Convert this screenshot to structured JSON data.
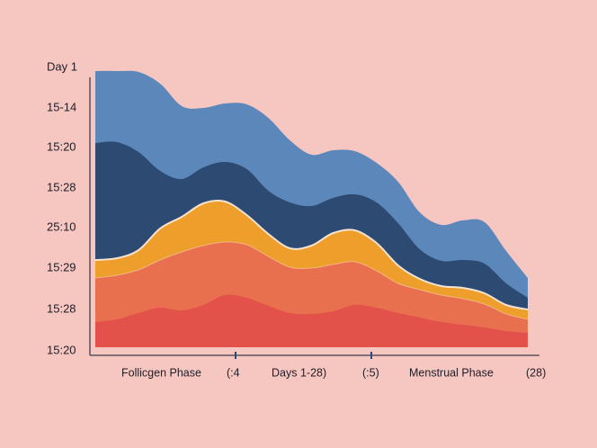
{
  "chart_data": {
    "type": "area",
    "y_tick_labels": [
      "Day 1",
      "15-14",
      "15:20",
      "15:28",
      "25:10",
      "15:29",
      "15:28",
      "15:20"
    ],
    "x_labels": [
      "Follicgen Phase",
      "(:4",
      "Days 1-28)",
      "(:5)",
      "Menstrual Phase",
      "(28)"
    ],
    "x": [
      0,
      1,
      2,
      3,
      4,
      5,
      6,
      7,
      8,
      9,
      10,
      11,
      12,
      13,
      14,
      15,
      16,
      17,
      18,
      19,
      20
    ],
    "series": [
      {
        "color": "#5b87ba",
        "values": [
          307,
          307,
          306,
          293,
          268,
          266,
          271,
          270,
          255,
          230,
          214,
          219,
          218,
          205,
          184,
          150,
          136,
          141,
          139,
          107,
          77
        ]
      },
      {
        "color": "#2d4a73",
        "values": [
          227,
          228,
          217,
          196,
          187,
          200,
          206,
          198,
          174,
          161,
          157,
          166,
          170,
          161,
          138,
          109,
          96,
          97,
          93,
          71,
          55
        ]
      },
      {
        "color": "#ee9e2a",
        "values": [
          97,
          99,
          108,
          132,
          145,
          160,
          162,
          147,
          126,
          110,
          113,
          127,
          130,
          116,
          91,
          76,
          68,
          66,
          60,
          47,
          42
        ]
      },
      {
        "color": "#e9704e",
        "values": [
          77,
          80,
          86,
          97,
          106,
          113,
          117,
          114,
          101,
          89,
          88,
          92,
          95,
          85,
          71,
          64,
          58,
          54,
          48,
          37,
          31
        ]
      },
      {
        "color": "#e2514a",
        "values": [
          28,
          31,
          38,
          44,
          41,
          47,
          58,
          55,
          46,
          38,
          37,
          40,
          47,
          44,
          38,
          33,
          28,
          25,
          22,
          18,
          16
        ]
      }
    ],
    "ylim": [
      0,
      310
    ],
    "legend": "none",
    "grid": false
  }
}
